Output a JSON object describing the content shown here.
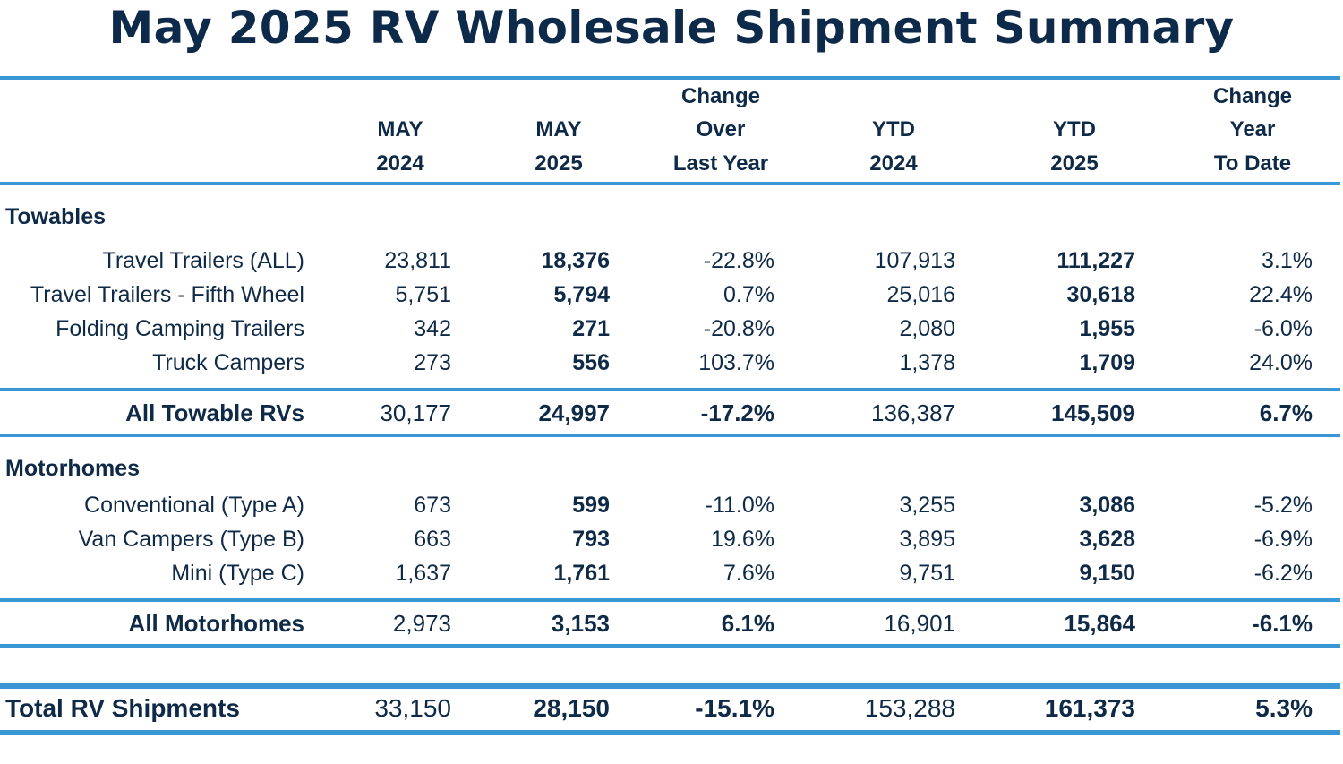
{
  "chart_data": {
    "type": "table",
    "title": "May 2025 RV Wholesale Shipment Summary",
    "columns": [
      [
        "MAY",
        "2024"
      ],
      [
        "MAY",
        "2025"
      ],
      [
        "Change",
        "Over",
        "Last Year"
      ],
      [
        "YTD",
        "2024"
      ],
      [
        "YTD",
        "2025"
      ],
      [
        "Change",
        "Year",
        "To Date"
      ]
    ],
    "sections": [
      {
        "name": "Towables",
        "rows": [
          {
            "label": "Travel Trailers (ALL)",
            "values": [
              "23,811",
              "18,376",
              "-22.8%",
              "107,913",
              "111,227",
              "3.1%"
            ]
          },
          {
            "label": "Travel Trailers - Fifth Wheel",
            "values": [
              "5,751",
              "5,794",
              "0.7%",
              "25,016",
              "30,618",
              "22.4%"
            ]
          },
          {
            "label": "Folding Camping Trailers",
            "values": [
              "342",
              "271",
              "-20.8%",
              "2,080",
              "1,955",
              "-6.0%"
            ]
          },
          {
            "label": "Truck Campers",
            "values": [
              "273",
              "556",
              "103.7%",
              "1,378",
              "1,709",
              "24.0%"
            ]
          }
        ],
        "total": {
          "label": "All Towable RVs",
          "values": [
            "30,177",
            "24,997",
            "-17.2%",
            "136,387",
            "145,509",
            "6.7%"
          ]
        }
      },
      {
        "name": "Motorhomes",
        "rows": [
          {
            "label": "Conventional (Type A)",
            "values": [
              "673",
              "599",
              "-11.0%",
              "3,255",
              "3,086",
              "-5.2%"
            ]
          },
          {
            "label": "Van Campers (Type B)",
            "values": [
              "663",
              "793",
              "19.6%",
              "3,895",
              "3,628",
              "-6.9%"
            ]
          },
          {
            "label": "Mini (Type C)",
            "values": [
              "1,637",
              "1,761",
              "7.6%",
              "9,751",
              "9,150",
              "-6.2%"
            ]
          }
        ],
        "total": {
          "label": "All Motorhomes",
          "values": [
            "2,973",
            "3,153",
            "6.1%",
            "16,901",
            "15,864",
            "-6.1%"
          ]
        }
      }
    ],
    "grand_total": {
      "label": "Total RV Shipments",
      "values": [
        "33,150",
        "28,150",
        "-15.1%",
        "153,288",
        "161,373",
        "5.3%"
      ]
    }
  },
  "colors": {
    "text": "#0f2a47",
    "title": "#0d2a4a",
    "rule": "#3a96d4"
  }
}
